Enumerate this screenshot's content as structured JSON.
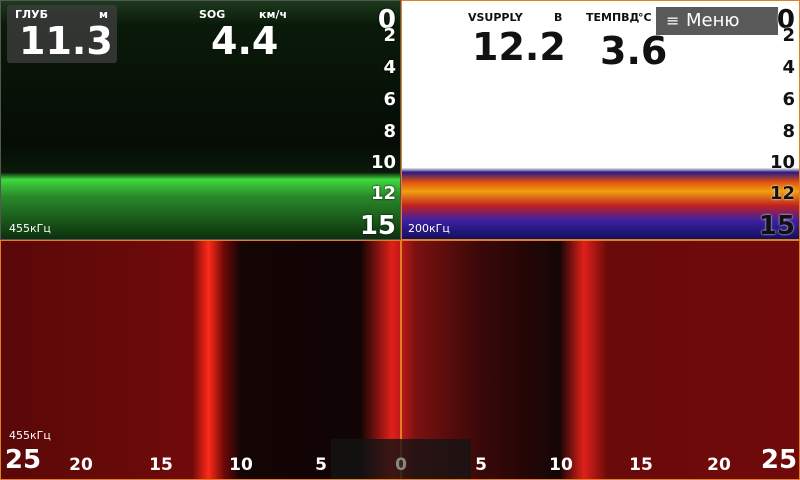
{
  "left_pane": {
    "depth_label": "ГЛУБ",
    "depth_unit": "м",
    "depth_value": "11.3",
    "sog_label": "SOG",
    "sog_unit": "км/ч",
    "sog_value": "4.4",
    "scale": [
      "0",
      "2",
      "4",
      "6",
      "8",
      "10",
      "12",
      "15"
    ],
    "frequency": "455кГц"
  },
  "right_pane": {
    "vsupply_label": "VSUPPLY",
    "vsupply_unit": "В",
    "vsupply_value": "12.2",
    "temp_label": "ТЕМПВД",
    "temp_unit": "°C",
    "temp_value": "3.6",
    "menu": "Меню",
    "scale": [
      "0",
      "2",
      "4",
      "6",
      "8",
      "10",
      "12",
      "15"
    ],
    "frequency": "200кГц"
  },
  "bottom_pane": {
    "frequency": "455кГц",
    "range_scale": [
      "25",
      "20",
      "15",
      "10",
      "5",
      "0",
      "5",
      "10",
      "15",
      "20",
      "25"
    ]
  }
}
